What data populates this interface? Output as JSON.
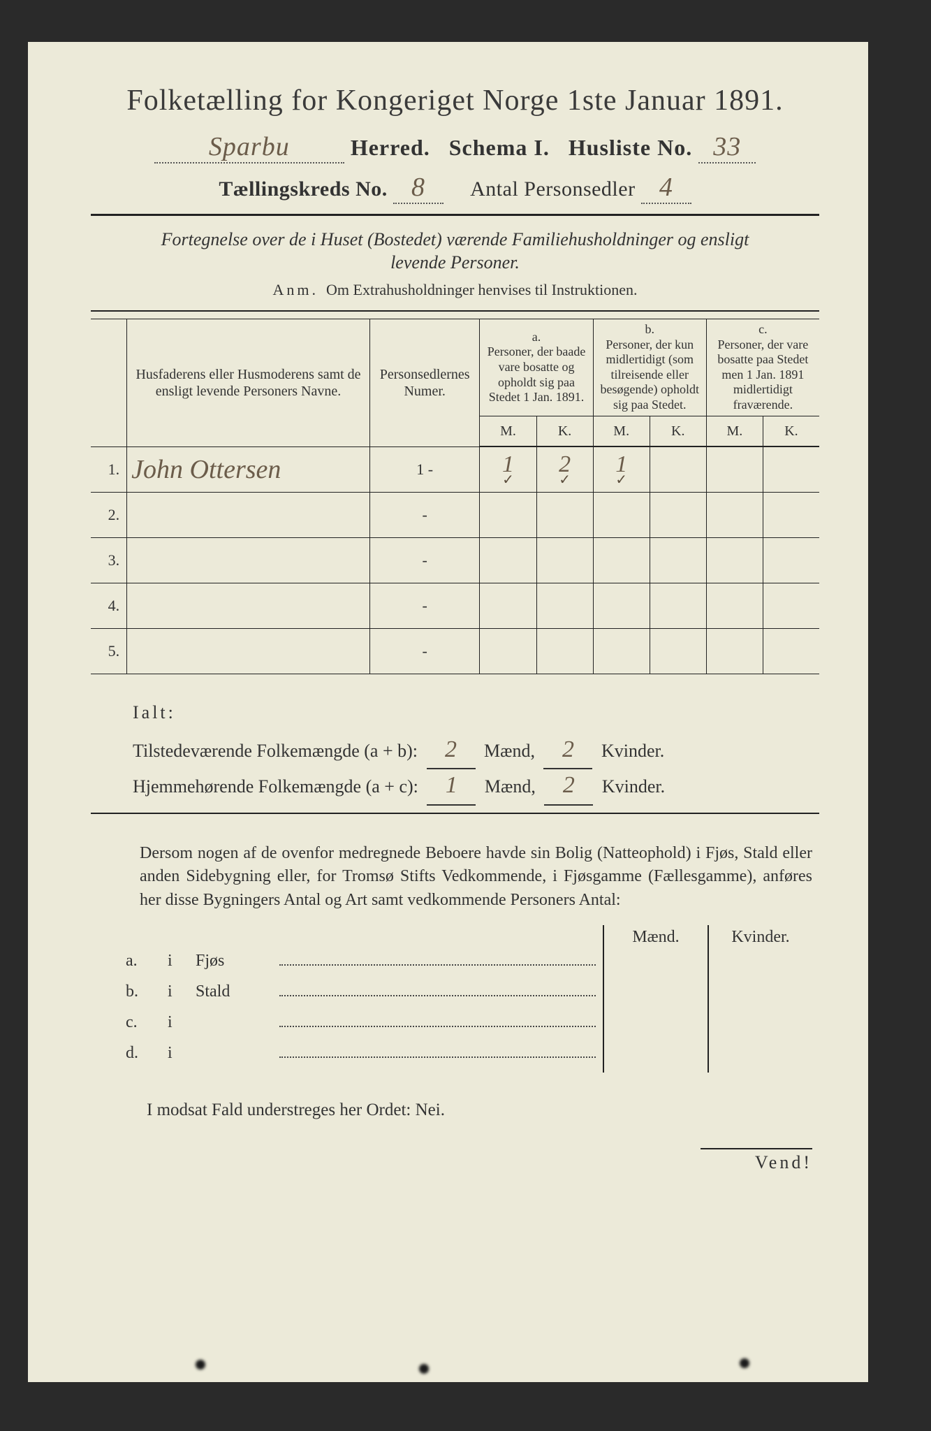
{
  "title": "Folketælling for Kongeriget Norge 1ste Januar 1891.",
  "header": {
    "herred_value": "Sparbu",
    "herred_label": "Herred.",
    "schema_label": "Schema I.",
    "husliste_label": "Husliste No.",
    "husliste_value": "33",
    "kreds_label": "Tællingskreds No.",
    "kreds_value": "8",
    "antal_label": "Antal Personsedler",
    "antal_value": "4"
  },
  "subtitle": "Fortegnelse over de i Huset (Bostedet) værende Familiehusholdninger og ensligt levende Personer.",
  "anm_label": "Anm.",
  "anm_text": "Om Extrahusholdninger henvises til Instruktionen.",
  "table": {
    "col_names": "Husfaderens eller Husmoderens samt de ensligt levende Personers Navne.",
    "col_psed": "Personsedlernes Numer.",
    "group_a_tag": "a.",
    "group_a": "Personer, der baade vare bosatte og opholdt sig paa Stedet 1 Jan. 1891.",
    "group_b_tag": "b.",
    "group_b": "Personer, der kun midlertidigt (som tilreisende eller besøgende) opholdt sig paa Stedet.",
    "group_c_tag": "c.",
    "group_c": "Personer, der vare bosatte paa Stedet men 1 Jan. 1891 midlertidigt fraværende.",
    "m": "M.",
    "k": "K.",
    "rows": [
      {
        "n": "1.",
        "name": "John Ottersen",
        "psed": "1 -",
        "aM": "1",
        "aK": "2",
        "bM": "1",
        "bK": "",
        "cM": "",
        "cK": "",
        "checks": true
      },
      {
        "n": "2.",
        "name": "",
        "psed": "-",
        "aM": "",
        "aK": "",
        "bM": "",
        "bK": "",
        "cM": "",
        "cK": ""
      },
      {
        "n": "3.",
        "name": "",
        "psed": "-",
        "aM": "",
        "aK": "",
        "bM": "",
        "bK": "",
        "cM": "",
        "cK": ""
      },
      {
        "n": "4.",
        "name": "",
        "psed": "-",
        "aM": "",
        "aK": "",
        "bM": "",
        "bK": "",
        "cM": "",
        "cK": ""
      },
      {
        "n": "5.",
        "name": "",
        "psed": "-",
        "aM": "",
        "aK": "",
        "bM": "",
        "bK": "",
        "cM": "",
        "cK": ""
      }
    ]
  },
  "ialt": {
    "label": "Ialt:",
    "line1_label": "Tilstedeværende Folkemængde (a + b):",
    "line1_m": "2",
    "line1_k": "2",
    "line2_label": "Hjemmehørende Folkemængde (a + c):",
    "line2_m": "1",
    "line2_k": "2",
    "maend": "Mænd,",
    "kvinder_dot": "Kvinder.",
    "kvinder": "Kvinder."
  },
  "para": "Dersom nogen af de ovenfor medregnede Beboere havde sin Bolig (Natteophold) i Fjøs, Stald eller anden Sidebygning eller, for Tromsø Stifts Vedkommende, i Fjøsgamme (Fællesgamme), anføres her disse Bygningers Antal og Art samt vedkommende Personers Antal:",
  "lower": {
    "maend": "Mænd.",
    "kvinder": "Kvinder.",
    "rows": [
      {
        "tag": "a.",
        "i": "i",
        "label": "Fjøs"
      },
      {
        "tag": "b.",
        "i": "i",
        "label": "Stald"
      },
      {
        "tag": "c.",
        "i": "i",
        "label": ""
      },
      {
        "tag": "d.",
        "i": "i",
        "label": ""
      }
    ]
  },
  "nei_line": "I modsat Fald understreges her Ordet: Nei.",
  "vend": "Vend!",
  "style": {
    "page_bg": "#ecead9",
    "outer_bg": "#2a2a2a",
    "ink": "#333333",
    "hand_ink": "#6b5c4a",
    "title_fontsize": 42,
    "body_fontsize": 24
  }
}
